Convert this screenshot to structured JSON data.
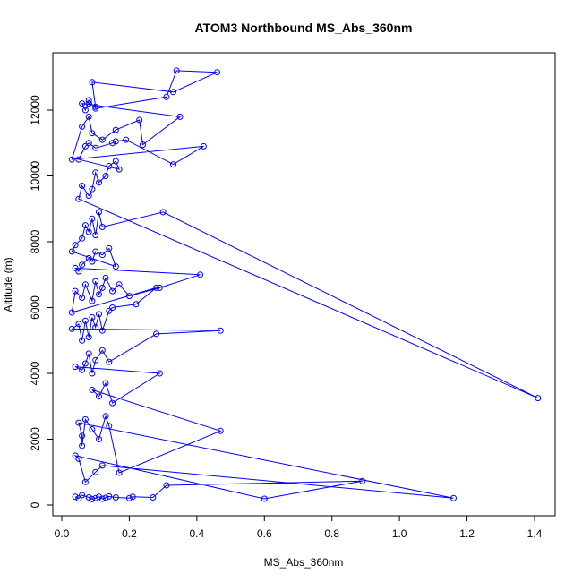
{
  "chart_data": {
    "type": "line",
    "title": "ATOM3 Northbound MS_Abs_360nm",
    "xlabel": "MS_Abs_360nm",
    "ylabel": "Altitude (m)",
    "xlim": [
      0.0,
      1.44
    ],
    "ylim": [
      0,
      13300
    ],
    "x_ticks": [
      0.0,
      0.2,
      0.4,
      0.6,
      0.8,
      1.0,
      1.2,
      1.4
    ],
    "y_ticks": [
      0,
      2000,
      4000,
      6000,
      8000,
      10000,
      12000
    ],
    "x_tick_labels": [
      "0.0",
      "0.2",
      "0.4",
      "0.6",
      "0.8",
      "1.0",
      "1.2",
      "1.4"
    ],
    "y_tick_labels": [
      "0",
      "2000",
      "4000",
      "6000",
      "8000",
      "10000",
      "12000"
    ],
    "line_color": "#0000ff",
    "marker": "open-circle",
    "legend": "none",
    "grid": false,
    "series": [
      {
        "x": [
          0.04,
          0.05,
          0.06,
          0.08,
          0.09,
          0.1,
          0.11,
          0.12,
          0.13,
          0.14,
          0.16,
          0.2,
          0.21,
          0.27,
          0.31,
          0.89,
          0.6,
          0.04,
          0.05,
          0.07,
          0.1,
          0.12,
          1.16,
          0.05,
          0.06,
          0.06,
          0.07,
          0.09,
          0.11,
          0.13,
          0.14,
          0.17,
          0.47,
          0.09,
          0.11,
          0.13,
          0.15,
          0.29,
          0.04,
          0.06,
          0.07,
          0.08,
          0.09,
          0.1,
          0.12,
          0.14,
          0.28,
          0.47,
          0.03,
          0.05,
          0.06,
          0.07,
          0.08,
          0.09,
          0.1,
          0.11,
          0.12,
          0.14,
          0.15,
          0.22,
          0.28,
          0.03,
          0.04,
          0.06,
          0.07,
          0.09,
          0.1,
          0.11,
          0.12,
          0.13,
          0.15,
          0.17,
          0.2,
          0.29,
          0.41,
          0.04,
          0.05,
          0.06,
          0.08,
          0.09,
          0.1,
          0.12,
          0.14,
          0.16,
          0.03,
          0.04,
          0.06,
          0.07,
          0.08,
          0.09,
          0.1,
          0.11,
          0.12,
          0.3,
          1.41,
          0.05,
          0.06,
          0.08,
          0.09,
          0.1,
          0.11,
          0.13,
          0.14,
          0.16,
          0.17,
          0.05,
          0.07,
          0.08,
          0.1,
          0.15,
          0.16,
          0.19,
          0.33,
          0.42,
          0.03,
          0.06,
          0.08,
          0.09,
          0.12,
          0.16,
          0.23,
          0.24,
          0.35,
          0.06,
          0.07,
          0.08,
          0.1,
          0.31,
          0.34,
          0.46,
          0.33,
          0.09,
          0.1,
          0.08
        ],
        "y": [
          250,
          200,
          300,
          230,
          180,
          210,
          250,
          190,
          220,
          260,
          230,
          210,
          250,
          230,
          600,
          730,
          190,
          1500,
          1400,
          700,
          1000,
          1200,
          210,
          2500,
          2100,
          1800,
          2600,
          2300,
          2000,
          2700,
          2400,
          980,
          2250,
          3500,
          3300,
          3700,
          3100,
          4000,
          4200,
          4100,
          4300,
          4600,
          4000,
          4400,
          4700,
          4350,
          5200,
          5300,
          5350,
          5500,
          5000,
          5600,
          5100,
          5700,
          5400,
          5800,
          5300,
          5900,
          6000,
          6100,
          6600,
          5850,
          6500,
          6300,
          6700,
          6200,
          6800,
          6400,
          6600,
          6900,
          6500,
          6700,
          6350,
          6600,
          7000,
          7200,
          7100,
          7300,
          7500,
          7400,
          7700,
          7600,
          7800,
          7250,
          7700,
          7900,
          8100,
          8500,
          8300,
          8700,
          8200,
          8900,
          8450,
          8900,
          3250,
          9300,
          9700,
          9400,
          9600,
          10100,
          9800,
          10000,
          10300,
          10450,
          10200,
          10500,
          10900,
          11000,
          10850,
          11000,
          11050,
          11100,
          10350,
          10900,
          10500,
          11500,
          11800,
          11300,
          11100,
          11400,
          11700,
          10950,
          11800,
          12200,
          12000,
          12300,
          12050,
          12400,
          13200,
          13150,
          12550,
          12850,
          12100,
          12200
        ]
      }
    ]
  }
}
